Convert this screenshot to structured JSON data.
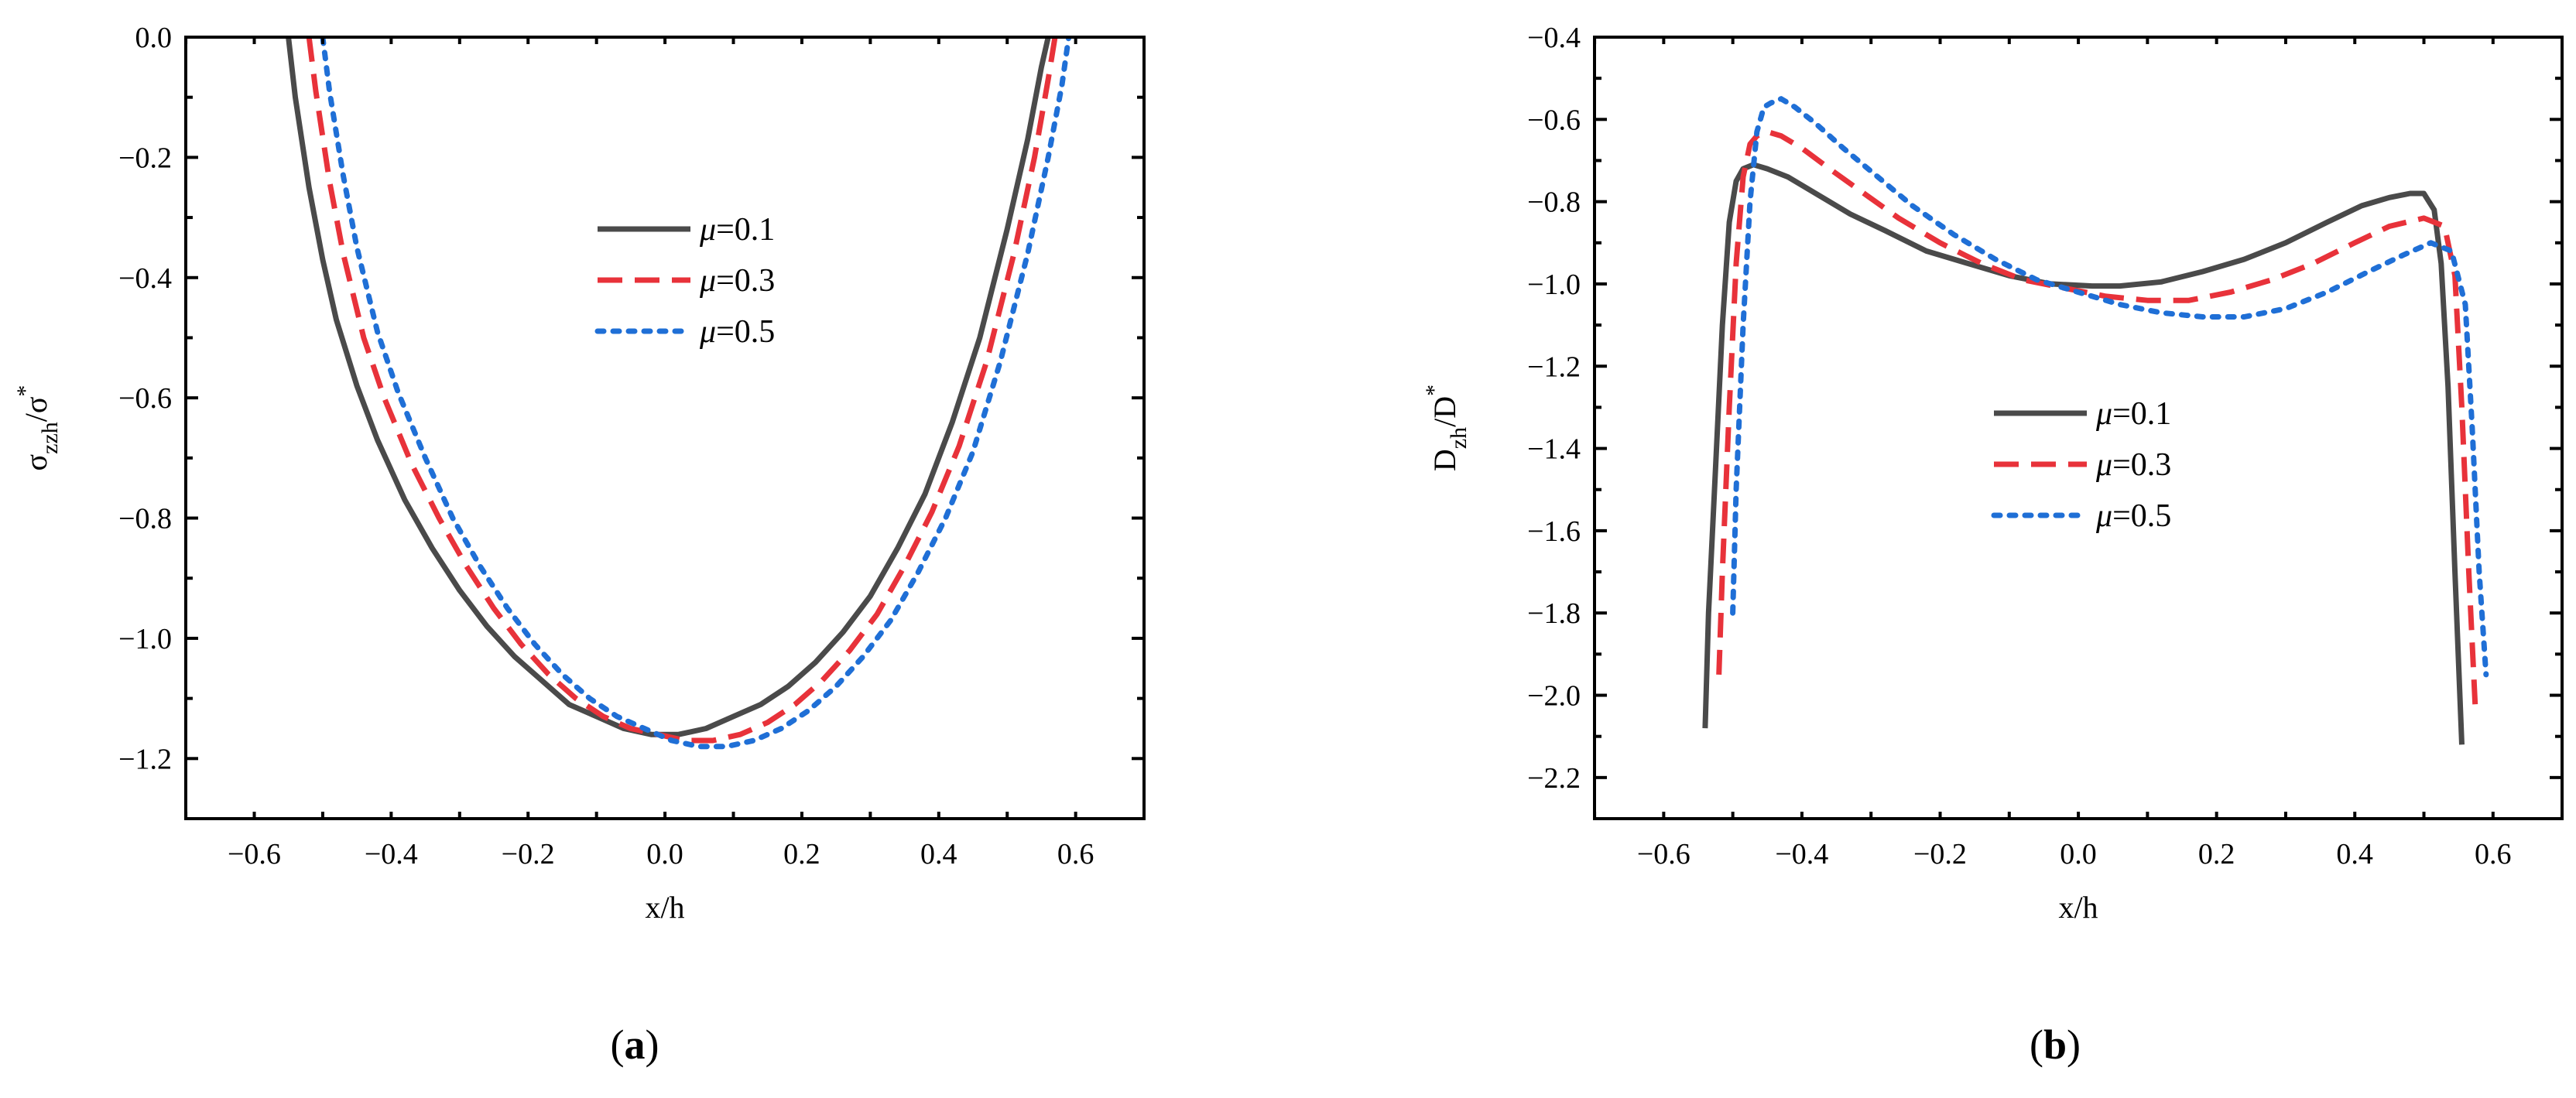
{
  "chart_data": [
    {
      "id": "a",
      "type": "line",
      "panel_label": "a",
      "xlabel": "x/h",
      "ylabel_main": "σ",
      "ylabel_sub": "zzh",
      "ylabel_mid": "/σ",
      "ylabel_sup": "*",
      "xlim": [
        -0.7,
        0.7
      ],
      "ylim": [
        -1.3,
        0.0
      ],
      "y_reversed": true,
      "xticks": [
        -0.6,
        -0.4,
        -0.2,
        0.0,
        0.2,
        0.4,
        0.6
      ],
      "xtick_labels": [
        "−0.6",
        "−0.4",
        "−0.2",
        "0.0",
        "0.2",
        "0.4",
        "0.6"
      ],
      "yticks": [
        0.0,
        -0.2,
        -0.4,
        -0.6,
        -0.8,
        -1.0,
        -1.2
      ],
      "ytick_labels": [
        "0.0",
        "−0.2",
        "−0.4",
        "−0.6",
        "−0.8",
        "−1.0",
        "−1.2"
      ],
      "legend_position": "upper-right",
      "series": [
        {
          "name": "μ=0.1",
          "legend_greek": "μ",
          "legend_value": "=0.1",
          "color": "#4a4a4a",
          "dash": "solid",
          "x": [
            -0.55,
            -0.54,
            -0.52,
            -0.5,
            -0.48,
            -0.45,
            -0.42,
            -0.38,
            -0.34,
            -0.3,
            -0.26,
            -0.22,
            -0.18,
            -0.14,
            -0.1,
            -0.06,
            -0.02,
            0.02,
            0.06,
            0.1,
            0.14,
            0.18,
            0.22,
            0.26,
            0.3,
            0.34,
            0.38,
            0.42,
            0.46,
            0.5,
            0.53,
            0.55,
            0.56
          ],
          "y": [
            0.0,
            -0.1,
            -0.25,
            -0.37,
            -0.47,
            -0.58,
            -0.67,
            -0.77,
            -0.85,
            -0.92,
            -0.98,
            -1.03,
            -1.07,
            -1.11,
            -1.13,
            -1.15,
            -1.16,
            -1.16,
            -1.15,
            -1.13,
            -1.11,
            -1.08,
            -1.04,
            -0.99,
            -0.93,
            -0.85,
            -0.76,
            -0.64,
            -0.5,
            -0.32,
            -0.17,
            -0.05,
            0.0
          ]
        },
        {
          "name": "μ=0.3",
          "legend_greek": "μ",
          "legend_value": "=0.3",
          "color": "#e8323a",
          "dash": "dashed",
          "x": [
            -0.52,
            -0.51,
            -0.49,
            -0.47,
            -0.44,
            -0.41,
            -0.37,
            -0.33,
            -0.29,
            -0.25,
            -0.21,
            -0.17,
            -0.13,
            -0.09,
            -0.05,
            -0.01,
            0.03,
            0.07,
            0.11,
            0.15,
            0.19,
            0.23,
            0.27,
            0.31,
            0.35,
            0.39,
            0.43,
            0.47,
            0.51,
            0.54,
            0.56,
            0.57
          ],
          "y": [
            0.0,
            -0.09,
            -0.24,
            -0.36,
            -0.5,
            -0.6,
            -0.71,
            -0.8,
            -0.88,
            -0.95,
            -1.01,
            -1.06,
            -1.1,
            -1.13,
            -1.15,
            -1.16,
            -1.17,
            -1.17,
            -1.16,
            -1.14,
            -1.11,
            -1.07,
            -1.02,
            -0.96,
            -0.88,
            -0.79,
            -0.68,
            -0.54,
            -0.36,
            -0.2,
            -0.07,
            0.0
          ]
        },
        {
          "name": "μ=0.5",
          "legend_greek": "μ",
          "legend_value": "=0.5",
          "color": "#1f6fd6",
          "dash": "dotted",
          "x": [
            -0.5,
            -0.49,
            -0.47,
            -0.45,
            -0.42,
            -0.39,
            -0.35,
            -0.31,
            -0.27,
            -0.23,
            -0.19,
            -0.15,
            -0.11,
            -0.07,
            -0.03,
            0.01,
            0.05,
            0.09,
            0.13,
            0.17,
            0.21,
            0.25,
            0.29,
            0.33,
            0.37,
            0.41,
            0.45,
            0.49,
            0.53,
            0.56,
            0.58,
            0.59
          ],
          "y": [
            0.0,
            -0.09,
            -0.23,
            -0.35,
            -0.49,
            -0.59,
            -0.7,
            -0.8,
            -0.88,
            -0.95,
            -1.01,
            -1.06,
            -1.1,
            -1.13,
            -1.15,
            -1.17,
            -1.18,
            -1.18,
            -1.17,
            -1.15,
            -1.12,
            -1.08,
            -1.03,
            -0.97,
            -0.89,
            -0.8,
            -0.69,
            -0.54,
            -0.36,
            -0.2,
            -0.08,
            0.0
          ]
        }
      ]
    },
    {
      "id": "b",
      "type": "line",
      "panel_label": "b",
      "xlabel": "x/h",
      "ylabel_main": "D",
      "ylabel_sub": "zh",
      "ylabel_mid": "/D",
      "ylabel_sup": "*",
      "xlim": [
        -0.7,
        0.7
      ],
      "ylim": [
        -2.3,
        -0.4
      ],
      "y_reversed": true,
      "xticks": [
        -0.6,
        -0.4,
        -0.2,
        0.0,
        0.2,
        0.4,
        0.6
      ],
      "xtick_labels": [
        "−0.6",
        "−0.4",
        "−0.2",
        "0.0",
        "0.2",
        "0.4",
        "0.6"
      ],
      "yticks": [
        -0.4,
        -0.6,
        -0.8,
        -1.0,
        -1.2,
        -1.4,
        -1.6,
        -1.8,
        -2.0,
        -2.2
      ],
      "ytick_labels": [
        "−0.4",
        "−0.6",
        "−0.8",
        "−1.0",
        "−1.2",
        "−1.4",
        "−1.6",
        "−1.8",
        "−2.0",
        "−2.2"
      ],
      "legend_position": "center",
      "series": [
        {
          "name": "μ=0.1",
          "legend_greek": "μ",
          "legend_value": "=0.1",
          "color": "#4a4a4a",
          "dash": "solid",
          "x": [
            -0.54,
            -0.535,
            -0.525,
            -0.515,
            -0.505,
            -0.495,
            -0.485,
            -0.47,
            -0.45,
            -0.42,
            -0.38,
            -0.33,
            -0.28,
            -0.22,
            -0.16,
            -0.1,
            -0.04,
            0.02,
            0.06,
            0.12,
            0.18,
            0.24,
            0.3,
            0.36,
            0.41,
            0.45,
            0.48,
            0.5,
            0.515,
            0.525,
            0.535,
            0.545,
            0.555
          ],
          "y": [
            -2.08,
            -1.8,
            -1.45,
            -1.1,
            -0.85,
            -0.75,
            -0.72,
            -0.71,
            -0.72,
            -0.74,
            -0.78,
            -0.83,
            -0.87,
            -0.92,
            -0.95,
            -0.98,
            -1.0,
            -1.005,
            -1.005,
            -0.995,
            -0.97,
            -0.94,
            -0.9,
            -0.85,
            -0.81,
            -0.79,
            -0.78,
            -0.78,
            -0.82,
            -0.95,
            -1.25,
            -1.7,
            -2.12
          ]
        },
        {
          "name": "μ=0.3",
          "legend_greek": "μ",
          "legend_value": "=0.3",
          "color": "#e8323a",
          "dash": "dashed",
          "x": [
            -0.52,
            -0.515,
            -0.505,
            -0.495,
            -0.485,
            -0.475,
            -0.465,
            -0.45,
            -0.43,
            -0.4,
            -0.36,
            -0.31,
            -0.26,
            -0.2,
            -0.14,
            -0.08,
            -0.02,
            0.04,
            0.1,
            0.16,
            0.22,
            0.28,
            0.34,
            0.4,
            0.45,
            0.5,
            0.53,
            0.545,
            0.555,
            0.565,
            0.575
          ],
          "y": [
            -1.95,
            -1.7,
            -1.3,
            -0.95,
            -0.74,
            -0.66,
            -0.64,
            -0.63,
            -0.64,
            -0.67,
            -0.72,
            -0.78,
            -0.84,
            -0.9,
            -0.95,
            -0.99,
            -1.01,
            -1.03,
            -1.04,
            -1.04,
            -1.02,
            -0.99,
            -0.95,
            -0.9,
            -0.86,
            -0.84,
            -0.86,
            -0.98,
            -1.3,
            -1.7,
            -2.05
          ]
        },
        {
          "name": "μ=0.5",
          "legend_greek": "μ",
          "legend_value": "=0.5",
          "color": "#1f6fd6",
          "dash": "dotted",
          "x": [
            -0.5,
            -0.495,
            -0.485,
            -0.475,
            -0.465,
            -0.455,
            -0.445,
            -0.43,
            -0.41,
            -0.38,
            -0.34,
            -0.29,
            -0.24,
            -0.18,
            -0.12,
            -0.06,
            0.0,
            0.06,
            0.12,
            0.18,
            0.24,
            0.3,
            0.36,
            0.42,
            0.47,
            0.51,
            0.54,
            0.56,
            0.57,
            0.58,
            0.59
          ],
          "y": [
            -1.8,
            -1.5,
            -1.1,
            -0.8,
            -0.63,
            -0.57,
            -0.56,
            -0.55,
            -0.57,
            -0.61,
            -0.67,
            -0.74,
            -0.81,
            -0.88,
            -0.94,
            -0.99,
            -1.02,
            -1.05,
            -1.07,
            -1.08,
            -1.08,
            -1.06,
            -1.02,
            -0.97,
            -0.93,
            -0.9,
            -0.92,
            -1.05,
            -1.35,
            -1.7,
            -1.95
          ]
        }
      ]
    }
  ]
}
